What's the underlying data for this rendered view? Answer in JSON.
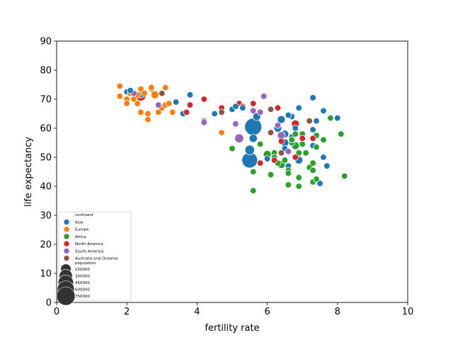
{
  "chart_data": {
    "type": "scatter",
    "title": "",
    "xlabel": "fertility rate",
    "ylabel": "life expectancy",
    "xlim": [
      0,
      10
    ],
    "ylim": [
      0,
      90
    ],
    "xticks": [
      0,
      2,
      4,
      6,
      8,
      10
    ],
    "yticks": [
      0,
      10,
      20,
      30,
      40,
      50,
      60,
      70,
      80,
      90
    ],
    "grid": false,
    "legend_position": "bottom-left",
    "hue_title": "continent",
    "size_title": "population",
    "size_legend": [
      {
        "label": "150000",
        "value": 150000
      },
      {
        "label": "300000",
        "value": 300000
      },
      {
        "label": "450000",
        "value": 450000
      },
      {
        "label": "600000",
        "value": 600000
      },
      {
        "label": "750000",
        "value": 750000
      }
    ],
    "series": [
      {
        "name": "Asia",
        "color": "#1f77b4",
        "points": [
          [
            2.0,
            72.5,
            10
          ],
          [
            2.1,
            73.0,
            8
          ],
          [
            2.4,
            71.5,
            10
          ],
          [
            3.4,
            69.0,
            10
          ],
          [
            3.6,
            65.0,
            10
          ],
          [
            3.8,
            71.5,
            12
          ],
          [
            4.5,
            65.0,
            12
          ],
          [
            5.0,
            66.5,
            10
          ],
          [
            5.1,
            67.5,
            8
          ],
          [
            5.3,
            67.0,
            8
          ],
          [
            5.6,
            60.5,
            600000
          ],
          [
            5.5,
            49.0,
            450000
          ],
          [
            5.5,
            52.5,
            60000
          ],
          [
            5.6,
            56.5,
            20000
          ],
          [
            5.7,
            64.0,
            15000
          ],
          [
            6.3,
            60.0,
            15000
          ],
          [
            6.4,
            63.0,
            15000
          ],
          [
            6.5,
            58.0,
            15000
          ],
          [
            6.5,
            55.0,
            15000
          ],
          [
            6.6,
            64.5,
            8
          ],
          [
            6.7,
            64.0,
            10
          ],
          [
            6.7,
            57.0,
            10
          ],
          [
            6.8,
            60.0,
            10
          ],
          [
            6.9,
            67.0,
            10
          ],
          [
            7.3,
            70.5,
            10
          ],
          [
            7.3,
            59.5,
            10
          ],
          [
            7.4,
            62.5,
            10
          ],
          [
            7.6,
            66.0,
            10
          ],
          [
            8.0,
            63.5,
            10
          ],
          [
            7.6,
            50.0,
            10
          ],
          [
            7.7,
            47.0,
            10
          ],
          [
            7.5,
            41.0,
            10
          ],
          [
            6.6,
            47.0,
            10
          ],
          [
            6.5,
            53.0,
            10
          ],
          [
            6.9,
            49.0,
            15000
          ],
          [
            7.3,
            54.0,
            10
          ],
          [
            6.0,
            49.5,
            10
          ]
        ]
      },
      {
        "name": "Europe",
        "color": "#ff7f0e",
        "points": [
          [
            1.8,
            74.5,
            10
          ],
          [
            1.8,
            71.0,
            10
          ],
          [
            2.0,
            70.0,
            10
          ],
          [
            2.0,
            68.5,
            10
          ],
          [
            2.1,
            72.0,
            10
          ],
          [
            2.2,
            70.0,
            10
          ],
          [
            2.3,
            71.5,
            10
          ],
          [
            2.3,
            68.5,
            10
          ],
          [
            2.4,
            73.5,
            10
          ],
          [
            2.4,
            65.5,
            10
          ],
          [
            2.5,
            72.0,
            10
          ],
          [
            2.6,
            63.0,
            10
          ],
          [
            2.6,
            65.0,
            10
          ],
          [
            2.7,
            73.5,
            10
          ],
          [
            2.7,
            74.0,
            10
          ],
          [
            2.8,
            71.5,
            15000
          ],
          [
            2.9,
            65.5,
            10
          ],
          [
            3.0,
            67.0,
            10
          ],
          [
            3.1,
            74.0,
            10
          ],
          [
            3.1,
            68.0,
            10
          ],
          [
            3.2,
            68.5,
            10
          ],
          [
            3.3,
            65.5,
            10
          ],
          [
            4.7,
            58.5,
            10
          ]
        ]
      },
      {
        "name": "Africa",
        "color": "#2ca02c",
        "points": [
          [
            4.2,
            62.5,
            10
          ],
          [
            5.0,
            53.0,
            10
          ],
          [
            5.6,
            38.5,
            10
          ],
          [
            5.6,
            45.0,
            10
          ],
          [
            5.8,
            54.5,
            10
          ],
          [
            6.0,
            51.0,
            15000
          ],
          [
            6.1,
            44.0,
            10
          ],
          [
            6.2,
            51.5,
            10
          ],
          [
            6.3,
            48.0,
            10
          ],
          [
            6.4,
            47.5,
            15000
          ],
          [
            6.5,
            49.0,
            10
          ],
          [
            6.6,
            45.5,
            10
          ],
          [
            6.6,
            44.5,
            10
          ],
          [
            6.6,
            40.5,
            10
          ],
          [
            6.7,
            55.0,
            10
          ],
          [
            6.8,
            58.0,
            10
          ],
          [
            6.8,
            54.0,
            15000
          ],
          [
            6.9,
            51.5,
            10
          ],
          [
            6.9,
            40.0,
            10
          ],
          [
            6.9,
            43.0,
            10
          ],
          [
            7.0,
            54.5,
            10
          ],
          [
            7.0,
            58.0,
            10
          ],
          [
            7.1,
            51.5,
            10
          ],
          [
            7.2,
            46.5,
            10
          ],
          [
            7.3,
            48.0,
            10
          ],
          [
            7.3,
            45.5,
            10
          ],
          [
            7.3,
            41.5,
            10
          ],
          [
            7.4,
            42.5,
            10
          ],
          [
            7.4,
            53.5,
            10
          ],
          [
            7.4,
            57.5,
            10
          ],
          [
            7.6,
            56.0,
            10
          ],
          [
            7.8,
            63.5,
            10
          ],
          [
            8.1,
            58.0,
            10
          ],
          [
            8.2,
            43.5,
            10
          ],
          [
            6.2,
            50.0,
            10
          ],
          [
            6.7,
            56.0,
            10
          ]
        ]
      },
      {
        "name": "North America",
        "color": "#d62728",
        "points": [
          [
            2.4,
            71.0,
            60000
          ],
          [
            3.7,
            65.5,
            10
          ],
          [
            3.8,
            68.0,
            10
          ],
          [
            4.2,
            70.0,
            10
          ],
          [
            4.7,
            67.0,
            10
          ],
          [
            5.2,
            68.5,
            10
          ],
          [
            5.3,
            67.5,
            10
          ],
          [
            5.6,
            68.5,
            10
          ],
          [
            5.8,
            48.0,
            10
          ],
          [
            6.2,
            49.0,
            10
          ],
          [
            6.3,
            67.0,
            10
          ],
          [
            6.4,
            55.5,
            10
          ],
          [
            6.8,
            61.5,
            15000
          ],
          [
            6.8,
            50.0,
            10
          ],
          [
            7.0,
            56.5,
            10
          ],
          [
            7.3,
            56.5,
            10
          ]
        ]
      },
      {
        "name": "South America",
        "color": "#9467bd",
        "points": [
          [
            2.2,
            72.0,
            10
          ],
          [
            2.9,
            68.0,
            10
          ],
          [
            4.2,
            62.0,
            10
          ],
          [
            5.1,
            61.5,
            10
          ],
          [
            5.2,
            56.5,
            40000
          ],
          [
            5.6,
            66.0,
            10
          ],
          [
            5.8,
            65.5,
            10
          ],
          [
            5.9,
            71.0,
            10
          ],
          [
            6.3,
            61.0,
            10
          ],
          [
            6.4,
            57.5,
            15000
          ],
          [
            6.6,
            52.0,
            10
          ]
        ]
      },
      {
        "name": "Australia and Oceania",
        "color": "#8c564b",
        "points": [
          [
            3.0,
            72.0,
            10
          ],
          [
            4.7,
            65.5,
            10
          ],
          [
            6.1,
            66.5,
            10
          ],
          [
            6.1,
            58.5,
            10
          ],
          [
            6.4,
            51.5,
            10
          ],
          [
            7.2,
            62.5,
            10
          ]
        ]
      }
    ]
  }
}
